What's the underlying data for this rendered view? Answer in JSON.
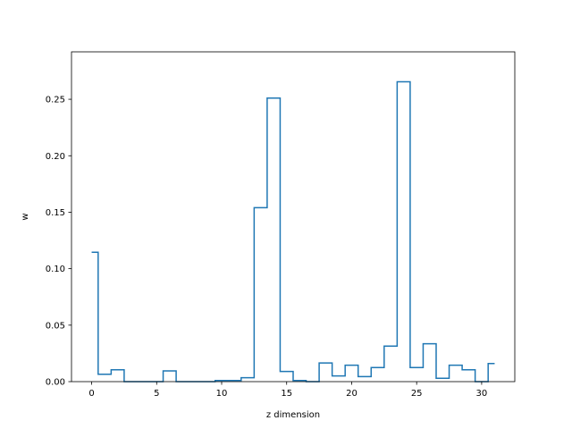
{
  "chart_data": {
    "type": "line",
    "style": "step",
    "xlabel": "z dimension",
    "ylabel": "w",
    "xlim": [
      -1.55,
      32.55
    ],
    "ylim": [
      0,
      0.292
    ],
    "xticks": [
      0,
      5,
      10,
      15,
      20,
      25,
      30
    ],
    "yticks": [
      0.0,
      0.05,
      0.1,
      0.15,
      0.2,
      0.25
    ],
    "ytick_labels": [
      "0.00",
      "0.05",
      "0.10",
      "0.15",
      "0.20",
      "0.25"
    ],
    "xtick_labels": [
      "0",
      "5",
      "10",
      "15",
      "20",
      "25",
      "30"
    ],
    "grid": false,
    "color": "#1f77b4",
    "x": [
      0,
      1,
      2,
      3,
      4,
      5,
      6,
      7,
      8,
      9,
      10,
      11,
      12,
      13,
      14,
      15,
      16,
      17,
      18,
      19,
      20,
      21,
      22,
      23,
      24,
      25,
      26,
      27,
      28,
      29,
      30,
      31
    ],
    "values": [
      0.1145,
      0.0065,
      0.0105,
      0.0,
      0.0,
      0.0,
      0.0095,
      0.0,
      0.0,
      0.0,
      0.001,
      0.001,
      0.0035,
      0.154,
      0.251,
      0.009,
      0.001,
      0.0,
      0.0165,
      0.005,
      0.0145,
      0.0045,
      0.0125,
      0.0315,
      0.2655,
      0.0125,
      0.0335,
      0.003,
      0.0145,
      0.0105,
      0.0,
      0.016
    ]
  }
}
